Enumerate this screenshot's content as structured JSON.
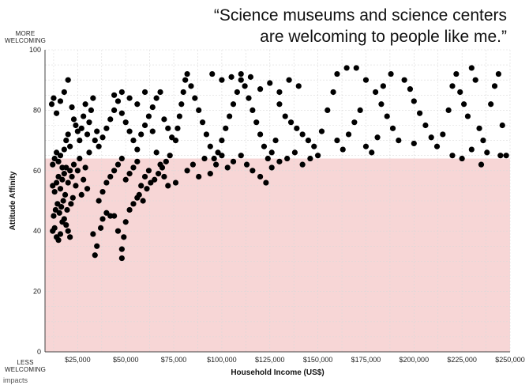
{
  "title_lines": [
    "“Science museums and science centers",
    "are welcoming to people like me.”"
  ],
  "top_label": [
    "MORE",
    "WELCOMING"
  ],
  "bottom_label": [
    "LESS",
    "WELCOMING"
  ],
  "brand": "impacts",
  "colors": {
    "band": "#f7d6d6",
    "point": "#000000",
    "grid": "#d9d9d9",
    "axis": "#444444"
  },
  "chart_data": {
    "type": "scatter",
    "xlabel": "Household Income (US$)",
    "ylabel": "Attitude Affinity",
    "xlim": [
      8000,
      250000
    ],
    "ylim": [
      0,
      100
    ],
    "x_ticks": [
      25000,
      50000,
      75000,
      100000,
      125000,
      150000,
      175000,
      200000,
      225000,
      250000
    ],
    "x_tick_labels": [
      "$25,000",
      "$50,000",
      "$75,000",
      "$100,000",
      "$125,000",
      "$150,000",
      "$175,000",
      "$200,000",
      "$225,000",
      "$250,000"
    ],
    "y_ticks": [
      0,
      20,
      40,
      60,
      80,
      100
    ],
    "y_tick_labels": [
      "0",
      "20",
      "40",
      "60",
      "80",
      "100"
    ],
    "highlight_band": {
      "y_from": 0,
      "y_to": 64
    },
    "grid": true,
    "points": [
      [
        12000,
        40
      ],
      [
        13000,
        41
      ],
      [
        14000,
        38
      ],
      [
        15000,
        37
      ],
      [
        16000,
        39
      ],
      [
        17000,
        43
      ],
      [
        18000,
        44
      ],
      [
        19000,
        42
      ],
      [
        20000,
        40
      ],
      [
        21000,
        38
      ],
      [
        12500,
        45
      ],
      [
        13500,
        47
      ],
      [
        14500,
        49
      ],
      [
        15500,
        46
      ],
      [
        16500,
        48
      ],
      [
        17500,
        50
      ],
      [
        18500,
        52
      ],
      [
        19500,
        47
      ],
      [
        21500,
        49
      ],
      [
        22500,
        51
      ],
      [
        12000,
        55
      ],
      [
        13000,
        53
      ],
      [
        14000,
        56
      ],
      [
        15000,
        58
      ],
      [
        16000,
        54
      ],
      [
        17000,
        57
      ],
      [
        18000,
        59
      ],
      [
        19000,
        61
      ],
      [
        20000,
        56
      ],
      [
        21000,
        60
      ],
      [
        12000,
        62
      ],
      [
        13000,
        64
      ],
      [
        14000,
        66
      ],
      [
        15000,
        63
      ],
      [
        16000,
        65
      ],
      [
        17000,
        61
      ],
      [
        18000,
        67
      ],
      [
        19000,
        70
      ],
      [
        20000,
        72
      ],
      [
        21000,
        68
      ],
      [
        11500,
        82
      ],
      [
        12500,
        84
      ],
      [
        14000,
        79
      ],
      [
        16000,
        83
      ],
      [
        18000,
        86
      ],
      [
        20000,
        90
      ],
      [
        22000,
        81
      ],
      [
        23000,
        77
      ],
      [
        24000,
        75
      ],
      [
        25000,
        73
      ],
      [
        22000,
        58
      ],
      [
        23000,
        62
      ],
      [
        24000,
        55
      ],
      [
        25000,
        60
      ],
      [
        26000,
        64
      ],
      [
        27000,
        52
      ],
      [
        28000,
        57
      ],
      [
        29000,
        61
      ],
      [
        30000,
        54
      ],
      [
        31000,
        66
      ],
      [
        26000,
        70
      ],
      [
        27000,
        74
      ],
      [
        28000,
        78
      ],
      [
        29000,
        82
      ],
      [
        30000,
        72
      ],
      [
        31000,
        76
      ],
      [
        32000,
        80
      ],
      [
        33000,
        84
      ],
      [
        34000,
        70
      ],
      [
        35000,
        73
      ],
      [
        33000,
        39
      ],
      [
        34000,
        32
      ],
      [
        35000,
        35
      ],
      [
        37000,
        41
      ],
      [
        38000,
        44
      ],
      [
        40000,
        46
      ],
      [
        42000,
        45
      ],
      [
        44000,
        45
      ],
      [
        46000,
        40
      ],
      [
        48000,
        34
      ],
      [
        48000,
        31
      ],
      [
        49000,
        38
      ],
      [
        50000,
        43
      ],
      [
        52000,
        47
      ],
      [
        54000,
        49
      ],
      [
        56000,
        51
      ],
      [
        36000,
        50
      ],
      [
        38000,
        53
      ],
      [
        40000,
        56
      ],
      [
        42000,
        58
      ],
      [
        44000,
        60
      ],
      [
        46000,
        62
      ],
      [
        48000,
        64
      ],
      [
        50000,
        57
      ],
      [
        52000,
        59
      ],
      [
        54000,
        61
      ],
      [
        56000,
        63
      ],
      [
        58000,
        55
      ],
      [
        60000,
        58
      ],
      [
        62000,
        60
      ],
      [
        36000,
        68
      ],
      [
        38000,
        71
      ],
      [
        40000,
        74
      ],
      [
        42000,
        77
      ],
      [
        44000,
        80
      ],
      [
        46000,
        83
      ],
      [
        48000,
        79
      ],
      [
        50000,
        76
      ],
      [
        52000,
        73
      ],
      [
        54000,
        70
      ],
      [
        56000,
        67
      ],
      [
        58000,
        72
      ],
      [
        60000,
        75
      ],
      [
        62000,
        78
      ],
      [
        64000,
        81
      ],
      [
        66000,
        84
      ],
      [
        68000,
        86
      ],
      [
        70000,
        77
      ],
      [
        72000,
        74
      ],
      [
        74000,
        71
      ],
      [
        44000,
        85
      ],
      [
        48000,
        86
      ],
      [
        52000,
        84
      ],
      [
        56000,
        82
      ],
      [
        60000,
        86
      ],
      [
        64000,
        73
      ],
      [
        66000,
        66
      ],
      [
        68000,
        62
      ],
      [
        70000,
        58
      ],
      [
        72000,
        55
      ],
      [
        57000,
        52
      ],
      [
        59000,
        50
      ],
      [
        61000,
        54
      ],
      [
        63000,
        56
      ],
      [
        65000,
        57
      ],
      [
        67000,
        59
      ],
      [
        69000,
        61
      ],
      [
        71000,
        63
      ],
      [
        73000,
        65
      ],
      [
        76000,
        56
      ],
      [
        76000,
        70
      ],
      [
        77000,
        74
      ],
      [
        78000,
        78
      ],
      [
        79000,
        82
      ],
      [
        80000,
        86
      ],
      [
        81000,
        90
      ],
      [
        82000,
        92
      ],
      [
        84000,
        88
      ],
      [
        86000,
        84
      ],
      [
        88000,
        80
      ],
      [
        90000,
        76
      ],
      [
        92000,
        72
      ],
      [
        94000,
        68
      ],
      [
        96000,
        64
      ],
      [
        98000,
        66
      ],
      [
        100000,
        70
      ],
      [
        102000,
        74
      ],
      [
        104000,
        78
      ],
      [
        106000,
        82
      ],
      [
        108000,
        86
      ],
      [
        110000,
        90
      ],
      [
        112000,
        88
      ],
      [
        114000,
        84
      ],
      [
        116000,
        80
      ],
      [
        118000,
        76
      ],
      [
        120000,
        72
      ],
      [
        122000,
        68
      ],
      [
        124000,
        64
      ],
      [
        126000,
        66
      ],
      [
        128000,
        70
      ],
      [
        82000,
        60
      ],
      [
        85000,
        62
      ],
      [
        88000,
        58
      ],
      [
        91000,
        64
      ],
      [
        94000,
        59
      ],
      [
        97000,
        62
      ],
      [
        100000,
        65
      ],
      [
        103000,
        61
      ],
      [
        106000,
        63
      ],
      [
        110000,
        65
      ],
      [
        113000,
        62
      ],
      [
        116000,
        60
      ],
      [
        120000,
        58
      ],
      [
        123000,
        56
      ],
      [
        126000,
        61
      ],
      [
        130000,
        63
      ],
      [
        134000,
        64
      ],
      [
        138000,
        66
      ],
      [
        142000,
        62
      ],
      [
        146000,
        64
      ],
      [
        95000,
        92
      ],
      [
        100000,
        90
      ],
      [
        105000,
        91
      ],
      [
        110000,
        92
      ],
      [
        115000,
        91
      ],
      [
        120000,
        87
      ],
      [
        125000,
        89
      ],
      [
        130000,
        86
      ],
      [
        135000,
        90
      ],
      [
        140000,
        88
      ],
      [
        130000,
        82
      ],
      [
        133000,
        78
      ],
      [
        136000,
        76
      ],
      [
        139000,
        74
      ],
      [
        142000,
        72
      ],
      [
        145000,
        70
      ],
      [
        148000,
        68
      ],
      [
        150000,
        65
      ],
      [
        152000,
        73
      ],
      [
        155000,
        80
      ],
      [
        158000,
        86
      ],
      [
        160000,
        92
      ],
      [
        165000,
        94
      ],
      [
        170000,
        94
      ],
      [
        175000,
        90
      ],
      [
        180000,
        86
      ],
      [
        183000,
        82
      ],
      [
        186000,
        78
      ],
      [
        189000,
        74
      ],
      [
        192000,
        70
      ],
      [
        160000,
        70
      ],
      [
        163000,
        67
      ],
      [
        166000,
        72
      ],
      [
        169000,
        76
      ],
      [
        172000,
        80
      ],
      [
        175000,
        68
      ],
      [
        178000,
        66
      ],
      [
        181000,
        71
      ],
      [
        184000,
        88
      ],
      [
        188000,
        92
      ],
      [
        195000,
        90
      ],
      [
        198000,
        87
      ],
      [
        200000,
        83
      ],
      [
        203000,
        79
      ],
      [
        206000,
        75
      ],
      [
        209000,
        71
      ],
      [
        212000,
        68
      ],
      [
        215000,
        72
      ],
      [
        218000,
        80
      ],
      [
        220000,
        88
      ],
      [
        222000,
        92
      ],
      [
        224000,
        86
      ],
      [
        226000,
        82
      ],
      [
        228000,
        78
      ],
      [
        230000,
        94
      ],
      [
        232000,
        90
      ],
      [
        234000,
        74
      ],
      [
        236000,
        70
      ],
      [
        238000,
        66
      ],
      [
        240000,
        82
      ],
      [
        242000,
        88
      ],
      [
        244000,
        92
      ],
      [
        246000,
        75
      ],
      [
        248000,
        65
      ],
      [
        220000,
        65
      ],
      [
        225000,
        64
      ],
      [
        230000,
        67
      ],
      [
        235000,
        62
      ],
      [
        245000,
        65
      ],
      [
        200000,
        69
      ]
    ]
  }
}
